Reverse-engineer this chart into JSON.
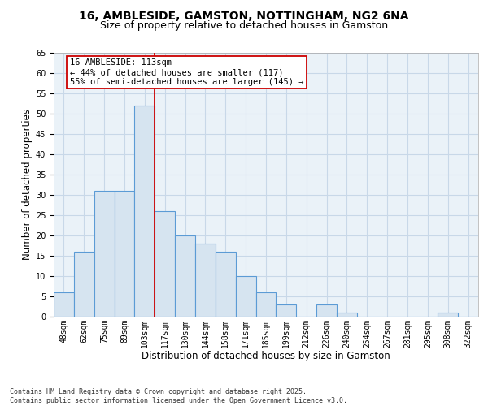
{
  "title1": "16, AMBLESIDE, GAMSTON, NOTTINGHAM, NG2 6NA",
  "title2": "Size of property relative to detached houses in Gamston",
  "xlabel": "Distribution of detached houses by size in Gamston",
  "ylabel": "Number of detached properties",
  "categories": [
    "48sqm",
    "62sqm",
    "75sqm",
    "89sqm",
    "103sqm",
    "117sqm",
    "130sqm",
    "144sqm",
    "158sqm",
    "171sqm",
    "185sqm",
    "199sqm",
    "212sqm",
    "226sqm",
    "240sqm",
    "254sqm",
    "267sqm",
    "281sqm",
    "295sqm",
    "308sqm",
    "322sqm"
  ],
  "values": [
    6,
    16,
    31,
    31,
    52,
    26,
    20,
    18,
    16,
    10,
    6,
    3,
    0,
    3,
    1,
    0,
    0,
    0,
    0,
    1,
    0
  ],
  "bar_color": "#d6e4f0",
  "bar_edge_color": "#5b9bd5",
  "bar_edge_width": 0.8,
  "vline_x": 4.5,
  "vline_color": "#cc0000",
  "annotation_text": "16 AMBLESIDE: 113sqm\n← 44% of detached houses are smaller (117)\n55% of semi-detached houses are larger (145) →",
  "annotation_box_color": "#ffffff",
  "annotation_box_edge": "#cc0000",
  "ylim": [
    0,
    65
  ],
  "yticks": [
    0,
    5,
    10,
    15,
    20,
    25,
    30,
    35,
    40,
    45,
    50,
    55,
    60,
    65
  ],
  "grid_color": "#c8d8e8",
  "bg_color": "#eaf2f8",
  "footnote": "Contains HM Land Registry data © Crown copyright and database right 2025.\nContains public sector information licensed under the Open Government Licence v3.0.",
  "title_fontsize": 10,
  "subtitle_fontsize": 9,
  "tick_fontsize": 7,
  "axis_label_fontsize": 8.5,
  "annot_fontsize": 7.5
}
